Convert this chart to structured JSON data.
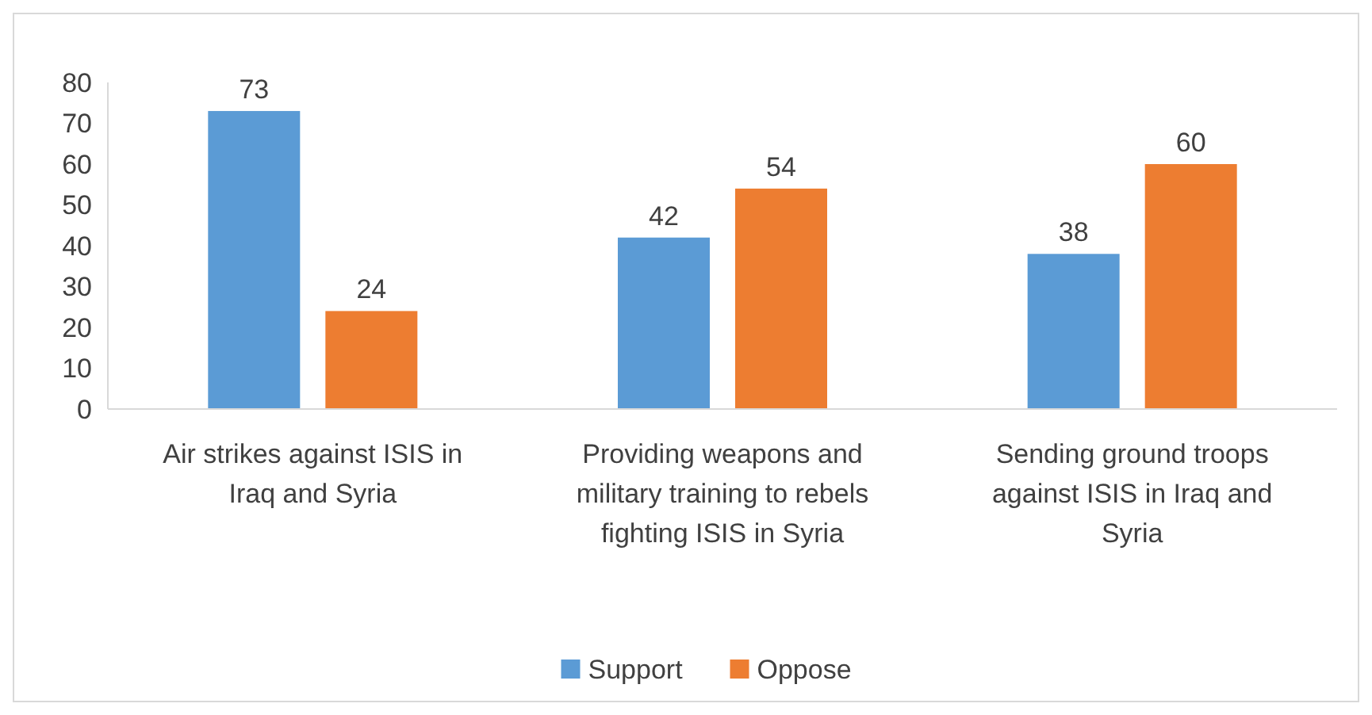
{
  "chart_data": {
    "type": "bar",
    "categories": [
      "Air strikes against ISIS in Iraq and Syria",
      "Providing weapons and military training to rebels fighting ISIS  in Syria",
      "Sending ground troops against ISIS in Iraq and Syria"
    ],
    "series": [
      {
        "name": "Support",
        "color": "#5b9bd5",
        "values": [
          73,
          42,
          38
        ]
      },
      {
        "name": "Oppose",
        "color": "#ed7d31",
        "values": [
          24,
          54,
          60
        ]
      }
    ],
    "ylim": [
      0,
      80
    ],
    "yticks": [
      0,
      10,
      20,
      30,
      40,
      50,
      60,
      70,
      80
    ],
    "grid": false,
    "legend": "bottom",
    "data_labels": true
  }
}
